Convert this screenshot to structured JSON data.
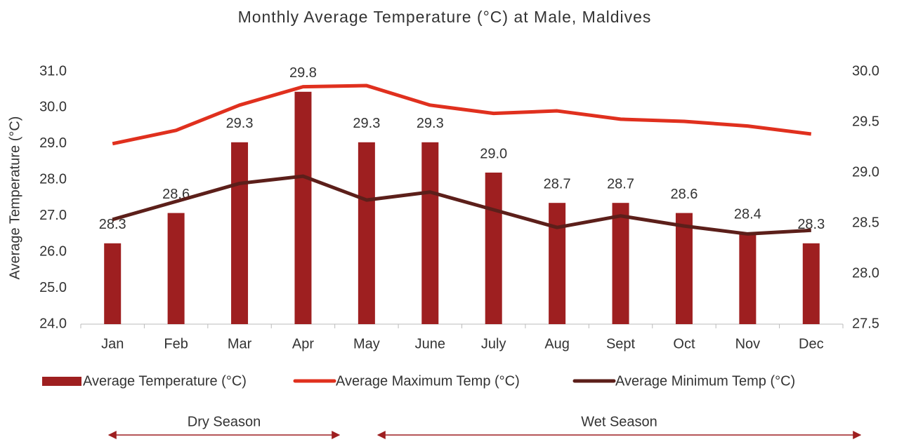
{
  "chart_data": {
    "type": "bar-line",
    "title": "Monthly Average Temperature (°C) at Male, Maldives",
    "y_label": "Average Temperature (°C)",
    "categories": [
      "Jan",
      "Feb",
      "Mar",
      "Apr",
      "May",
      "June",
      "July",
      "Aug",
      "Sept",
      "Oct",
      "Nov",
      "Dec"
    ],
    "series": [
      {
        "name": "Average Temperature (°C)",
        "type": "bar",
        "axis": "y2",
        "color": "#9e1f20",
        "values": [
          28.3,
          28.6,
          29.3,
          29.8,
          29.3,
          29.3,
          29.0,
          28.7,
          28.7,
          28.6,
          28.4,
          28.3
        ],
        "value_labels": [
          "28.3",
          "28.6",
          "29.3",
          "29.8",
          "29.3",
          "29.3",
          "29.0",
          "28.7",
          "28.7",
          "28.6",
          "28.4",
          "28.3"
        ]
      },
      {
        "name": "Average Maximum Temp (°C)",
        "type": "line",
        "color": "#e0301e",
        "values": [
          29.0,
          29.37,
          30.07,
          30.58,
          30.61,
          30.07,
          29.84,
          29.91,
          29.68,
          29.62,
          29.49,
          29.27
        ]
      },
      {
        "name": "Average Minimum Temp (°C)",
        "type": "line",
        "color": "#5c1f1a",
        "values": [
          26.9,
          27.4,
          27.9,
          28.1,
          27.44,
          27.66,
          27.17,
          26.68,
          27.0,
          26.72,
          26.5,
          26.6
        ]
      }
    ],
    "ylim": [
      24,
      31
    ],
    "yticks": [
      {
        "value": 24,
        "label": "24.0"
      },
      {
        "value": 25,
        "label": "25.0"
      },
      {
        "value": 26,
        "label": "26.0"
      },
      {
        "value": 27,
        "label": "27.0"
      },
      {
        "value": 28,
        "label": "28.0"
      },
      {
        "value": 29,
        "label": "29.0"
      },
      {
        "value": 30,
        "label": "30.0"
      },
      {
        "value": 31,
        "label": "31.0"
      }
    ],
    "y2lim": [
      27.5,
      30
    ],
    "y2ticks": [
      {
        "value": 27.5,
        "label": "27.5"
      },
      {
        "value": 28,
        "label": "28.0"
      },
      {
        "value": 28.5,
        "label": "28.5"
      },
      {
        "value": 29,
        "label": "29.0"
      },
      {
        "value": 29.5,
        "label": "29.5"
      },
      {
        "value": 30,
        "label": "30.0"
      }
    ],
    "annotations": [
      {
        "text": "Dry Season"
      },
      {
        "text": "Wet Season"
      }
    ],
    "annotation_color": "#9e1f20"
  }
}
